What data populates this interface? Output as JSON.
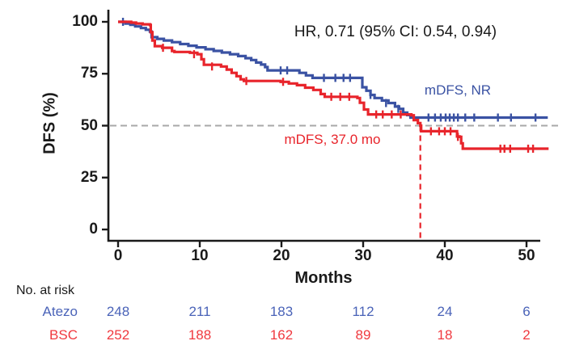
{
  "chart_data": {
    "type": "line",
    "subtype": "kaplan-meier-step",
    "title": "",
    "annotation": "HR, 0.71 (95% CI: 0.54, 0.94)",
    "xlabel": "Months",
    "ylabel": "DFS (%)",
    "xlim": [
      0,
      52.7
    ],
    "ylim": [
      0,
      100
    ],
    "x_ticks": [
      0,
      10,
      20,
      30,
      40,
      50
    ],
    "y_ticks": [
      100,
      75,
      50,
      25,
      0
    ],
    "grid": false,
    "legend_position": "inline-labels",
    "reference_lines": {
      "horizontal_50pct": {
        "value": 50,
        "color": "#a8a8a8",
        "style": "dashed"
      },
      "vertical_median_month": {
        "value": 37,
        "color": "#e8242b",
        "style": "dashed"
      }
    },
    "series": [
      {
        "name": "Atezo",
        "color": "#3a52a3",
        "median_label": "mDFS, NR",
        "steps": [
          [
            0,
            100
          ],
          [
            0.6,
            100
          ],
          [
            0.9,
            99.2
          ],
          [
            1.5,
            98.6
          ],
          [
            2.1,
            97.8
          ],
          [
            2.8,
            97
          ],
          [
            3.4,
            96.2
          ],
          [
            3.9,
            95.3
          ],
          [
            4.1,
            92.6
          ],
          [
            4.8,
            91.8
          ],
          [
            5.6,
            91
          ],
          [
            6.6,
            90.2
          ],
          [
            7.6,
            89.3
          ],
          [
            8.6,
            88.5
          ],
          [
            9.6,
            87.7
          ],
          [
            10.7,
            86.8
          ],
          [
            11.7,
            86
          ],
          [
            12.7,
            85.2
          ],
          [
            13.7,
            84.4
          ],
          [
            14.7,
            83.5
          ],
          [
            15.6,
            82.5
          ],
          [
            16.3,
            81.6
          ],
          [
            16.9,
            80.4
          ],
          [
            17.5,
            79.4
          ],
          [
            18,
            78.2
          ],
          [
            18.3,
            76.6
          ],
          [
            21.8,
            76.6
          ],
          [
            22.2,
            75.4
          ],
          [
            23,
            74.2
          ],
          [
            23.8,
            73
          ],
          [
            29.7,
            73
          ],
          [
            29.9,
            68.5
          ],
          [
            30.4,
            66.8
          ],
          [
            30.9,
            64.8
          ],
          [
            31.4,
            63.3
          ],
          [
            32.3,
            62.1
          ],
          [
            33.1,
            60.9
          ],
          [
            33.9,
            59.2
          ],
          [
            34.4,
            58.1
          ],
          [
            34.9,
            56.3
          ],
          [
            35.4,
            55.1
          ],
          [
            35.8,
            53.9
          ],
          [
            52.6,
            53.9
          ]
        ],
        "censors": [
          [
            0.6,
            100
          ],
          [
            19.9,
            76.6
          ],
          [
            20.7,
            76.6
          ],
          [
            25.2,
            73
          ],
          [
            26.6,
            73
          ],
          [
            27.6,
            73
          ],
          [
            28.4,
            73
          ],
          [
            30.9,
            64.8
          ],
          [
            32.8,
            60.9
          ],
          [
            34.3,
            58.1
          ],
          [
            38,
            53.9
          ],
          [
            38.8,
            53.9
          ],
          [
            39.5,
            53.9
          ],
          [
            40.1,
            53.9
          ],
          [
            40.6,
            53.9
          ],
          [
            41.1,
            53.9
          ],
          [
            41.6,
            53.9
          ],
          [
            42.5,
            53.9
          ],
          [
            43.6,
            53.9
          ],
          [
            46.5,
            53.9
          ],
          [
            48.1,
            53.9
          ],
          [
            51.1,
            53.9
          ]
        ]
      },
      {
        "name": "BSC",
        "color": "#e8242b",
        "median_label": "mDFS, 37.0 mo",
        "steps": [
          [
            0,
            100
          ],
          [
            1.6,
            99.6
          ],
          [
            2.2,
            99.2
          ],
          [
            3,
            98.8
          ],
          [
            3.9,
            98.5
          ],
          [
            4,
            95
          ],
          [
            4.2,
            91
          ],
          [
            4.5,
            88.3
          ],
          [
            5.4,
            87.5
          ],
          [
            6.6,
            85.9
          ],
          [
            6.9,
            85.5
          ],
          [
            8.8,
            85.1
          ],
          [
            9.7,
            84.4
          ],
          [
            10.2,
            82
          ],
          [
            10.5,
            79.3
          ],
          [
            12.6,
            78.5
          ],
          [
            13.3,
            77
          ],
          [
            13.9,
            75.4
          ],
          [
            14.5,
            73.8
          ],
          [
            15,
            72.3
          ],
          [
            15.4,
            71.5
          ],
          [
            19.9,
            71.1
          ],
          [
            20.9,
            70.3
          ],
          [
            21.9,
            69.5
          ],
          [
            22.9,
            68.3
          ],
          [
            23.9,
            67.2
          ],
          [
            24.8,
            65.2
          ],
          [
            25.3,
            63.9
          ],
          [
            29.3,
            63.3
          ],
          [
            29.6,
            61
          ],
          [
            30.1,
            57.8
          ],
          [
            30.6,
            55.4
          ],
          [
            35.9,
            55
          ],
          [
            36.2,
            52.7
          ],
          [
            36.7,
            51.2
          ],
          [
            37,
            50
          ],
          [
            37.1,
            47.3
          ],
          [
            41.3,
            47.3
          ],
          [
            41.5,
            44.8
          ],
          [
            41.8,
            44.6
          ],
          [
            42,
            41.5
          ],
          [
            42.2,
            38.9
          ],
          [
            52.7,
            38.9
          ]
        ],
        "censors": [
          [
            5.5,
            87.5
          ],
          [
            9.3,
            84.4
          ],
          [
            11.5,
            78.5
          ],
          [
            15.7,
            71.5
          ],
          [
            20.2,
            71.1
          ],
          [
            26.1,
            63.9
          ],
          [
            27.2,
            63.9
          ],
          [
            28.3,
            63.9
          ],
          [
            31.6,
            55.4
          ],
          [
            32.4,
            55.4
          ],
          [
            33.5,
            55.4
          ],
          [
            34.6,
            55.4
          ],
          [
            38.3,
            47.3
          ],
          [
            39.3,
            47.3
          ],
          [
            40,
            47.3
          ],
          [
            40.7,
            47.3
          ],
          [
            41.6,
            44.6
          ],
          [
            46.8,
            38.9
          ],
          [
            47.3,
            38.9
          ],
          [
            48,
            38.9
          ],
          [
            50.2,
            38.9
          ],
          [
            50.8,
            38.9
          ]
        ]
      }
    ]
  },
  "risk_table": {
    "title": "No. at risk",
    "time_points": [
      0,
      10,
      20,
      30,
      40,
      50
    ],
    "rows": [
      {
        "label": "Atezo",
        "color": "#4a63b8",
        "values": [
          "248",
          "211",
          "183",
          "112",
          "24",
          "6"
        ]
      },
      {
        "label": "BSC",
        "color": "#f0393f",
        "values": [
          "252",
          "188",
          "162",
          "89",
          "18",
          "2"
        ]
      }
    ]
  },
  "colors": {
    "axis": "#1a1a1a",
    "atezo_curve": "#3a52a3",
    "bsc_curve": "#e8242b",
    "dash_gray": "#a8a8a8"
  }
}
